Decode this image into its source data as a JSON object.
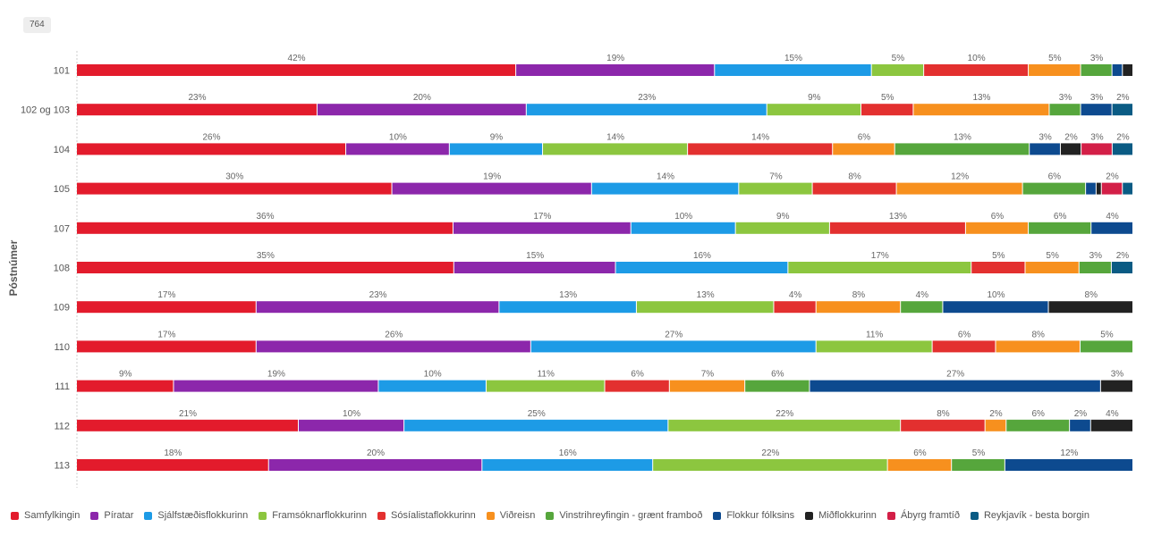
{
  "badge": "764",
  "chart_data": {
    "type": "bar",
    "orientation": "horizontal",
    "stacked": "percent",
    "ylabel": "Póstnúmer",
    "xlabel": "",
    "xlim": [
      0,
      100
    ],
    "grid": false,
    "legend_position": "bottom",
    "categories": [
      "101",
      "102 og 103",
      "104",
      "105",
      "107",
      "108",
      "109",
      "110",
      "111",
      "112",
      "113"
    ],
    "series": [
      {
        "name": "Samfylkingin",
        "color": "#e31b2c",
        "values": [
          42,
          23,
          26,
          30,
          36,
          35,
          17,
          17,
          9,
          21,
          18
        ]
      },
      {
        "name": "Píratar",
        "color": "#8c27ab",
        "values": [
          19,
          20,
          10,
          19,
          17,
          15,
          23,
          26,
          19,
          10,
          20
        ]
      },
      {
        "name": "Sjálfstæðisflokkurinn",
        "color": "#1d9be6",
        "values": [
          15,
          23,
          9,
          14,
          10,
          16,
          13,
          27,
          10,
          25,
          16
        ]
      },
      {
        "name": "Framsóknarflokkurinn",
        "color": "#8cc63f",
        "values": [
          5,
          9,
          14,
          7,
          9,
          17,
          13,
          11,
          11,
          22,
          22
        ]
      },
      {
        "name": "Sósíalistaflokkurinn",
        "color": "#e3302f",
        "values": [
          10,
          5,
          14,
          8,
          13,
          5,
          4,
          6,
          6,
          8,
          0
        ]
      },
      {
        "name": "Viðreisn",
        "color": "#f7901e",
        "values": [
          5,
          13,
          6,
          12,
          6,
          5,
          8,
          8,
          7,
          2,
          6
        ]
      },
      {
        "name": "Vinstrihreyfingin - grænt framboð",
        "color": "#56a63c",
        "values": [
          3,
          3,
          13,
          6,
          6,
          3,
          4,
          5,
          6,
          6,
          5
        ]
      },
      {
        "name": "Flokkur fólksins",
        "color": "#0d4a8f",
        "values": [
          1,
          3,
          3,
          1,
          4,
          0,
          10,
          0,
          27,
          2,
          12
        ]
      },
      {
        "name": "Miðflokkurinn",
        "color": "#222222",
        "values": [
          1,
          0,
          2,
          0.5,
          0,
          0,
          8,
          0,
          3,
          4,
          0
        ]
      },
      {
        "name": "Ábyrg framtíð",
        "color": "#d31f47",
        "values": [
          0,
          0,
          3,
          2,
          0,
          0,
          0,
          0,
          0,
          0,
          0
        ]
      },
      {
        "name": "Reykjavík - besta borgin",
        "color": "#0a5b84",
        "values": [
          0,
          2,
          2,
          1,
          0,
          2,
          0,
          0,
          0,
          0,
          0
        ]
      }
    ],
    "data_labels": [
      [
        "42%",
        "19%",
        "15%",
        "5%",
        "10%",
        "5%",
        "3%",
        "",
        "",
        "",
        ""
      ],
      [
        "23%",
        "20%",
        "23%",
        "9%",
        "5%",
        "13%",
        "3%",
        "3%",
        "",
        "",
        "2%"
      ],
      [
        "26%",
        "10%",
        "9%",
        "14%",
        "14%",
        "6%",
        "13%",
        "3%",
        "2%",
        "3%",
        "2%"
      ],
      [
        "30%",
        "19%",
        "14%",
        "7%",
        "8%",
        "12%",
        "6%",
        "",
        "",
        "2%",
        ""
      ],
      [
        "36%",
        "17%",
        "10%",
        "9%",
        "13%",
        "6%",
        "6%",
        "4%",
        "",
        "",
        ""
      ],
      [
        "35%",
        "15%",
        "16%",
        "17%",
        "5%",
        "5%",
        "3%",
        "",
        "",
        "",
        "2%"
      ],
      [
        "17%",
        "23%",
        "13%",
        "13%",
        "4%",
        "8%",
        "4%",
        "10%",
        "8%",
        "",
        ""
      ],
      [
        "17%",
        "26%",
        "27%",
        "11%",
        "6%",
        "8%",
        "5%",
        "",
        "",
        "",
        ""
      ],
      [
        "9%",
        "19%",
        "10%",
        "11%",
        "6%",
        "7%",
        "6%",
        "27%",
        "3%",
        "",
        ""
      ],
      [
        "21%",
        "10%",
        "25%",
        "22%",
        "8%",
        "2%",
        "6%",
        "2%",
        "4%",
        "",
        ""
      ],
      [
        "18%",
        "20%",
        "16%",
        "22%",
        "",
        "6%",
        "5%",
        "12%",
        "",
        "",
        ""
      ]
    ]
  }
}
